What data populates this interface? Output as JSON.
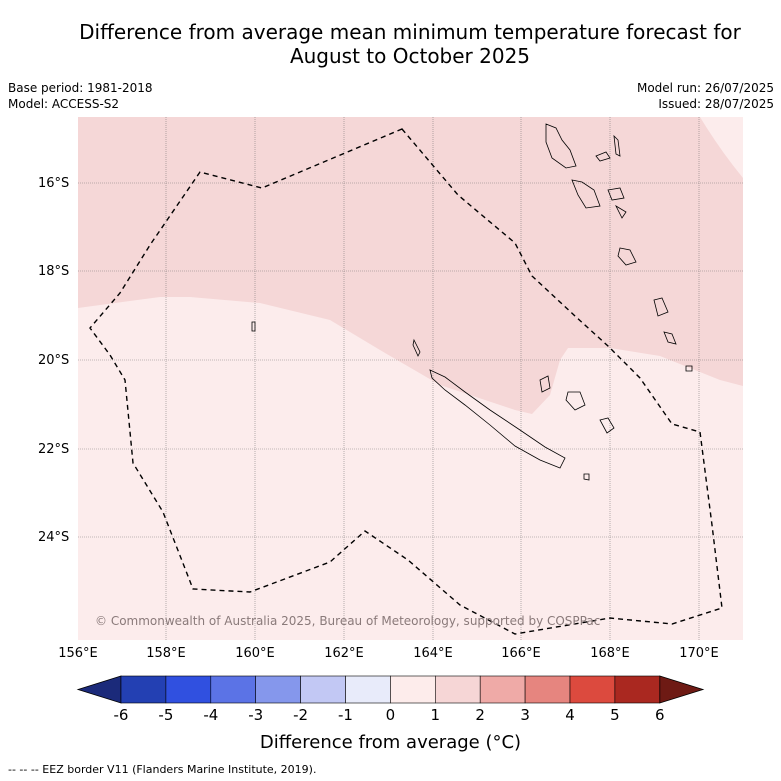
{
  "title_line1": "Difference from average mean minimum temperature forecast for",
  "title_line2": "August to October 2025",
  "meta_left": [
    "Base period: 1981-2018",
    "Model: ACCESS-S2"
  ],
  "meta_right": [
    "Model run: 26/07/2025",
    "Issued: 28/07/2025"
  ],
  "lat_labels": [
    "16°S",
    "18°S",
    "20°S",
    "22°S",
    "24°S"
  ],
  "lon_labels": [
    "156°E",
    "158°E",
    "160°E",
    "162°E",
    "164°E",
    "166°E",
    "168°E",
    "170°E"
  ],
  "credit": "© Commonwealth of Australia 2025, Bureau of Meteorology, supported by COSPPac",
  "colorbar": {
    "ticks": [
      "-6",
      "-5",
      "-4",
      "-3",
      "-2",
      "-1",
      "0",
      "1",
      "2",
      "3",
      "4",
      "5",
      "6"
    ],
    "colors": [
      "#1b2a7a",
      "#2340b3",
      "#3050e0",
      "#5b73e6",
      "#8597ec",
      "#c2c8f4",
      "#e8ebfa",
      "#fdeceb",
      "#f6d6d6",
      "#efaaa7",
      "#e6857f",
      "#dc4a3e",
      "#aa2820",
      "#6e1a14"
    ],
    "title": "Difference from average (°C)"
  },
  "colors": {
    "warm_high": "#f5d7d7",
    "warm_low": "#fcecec",
    "eez": "#000000"
  },
  "footer": "-- -- -- EEZ border V11 (Flanders Marine Institute, 2019)."
}
